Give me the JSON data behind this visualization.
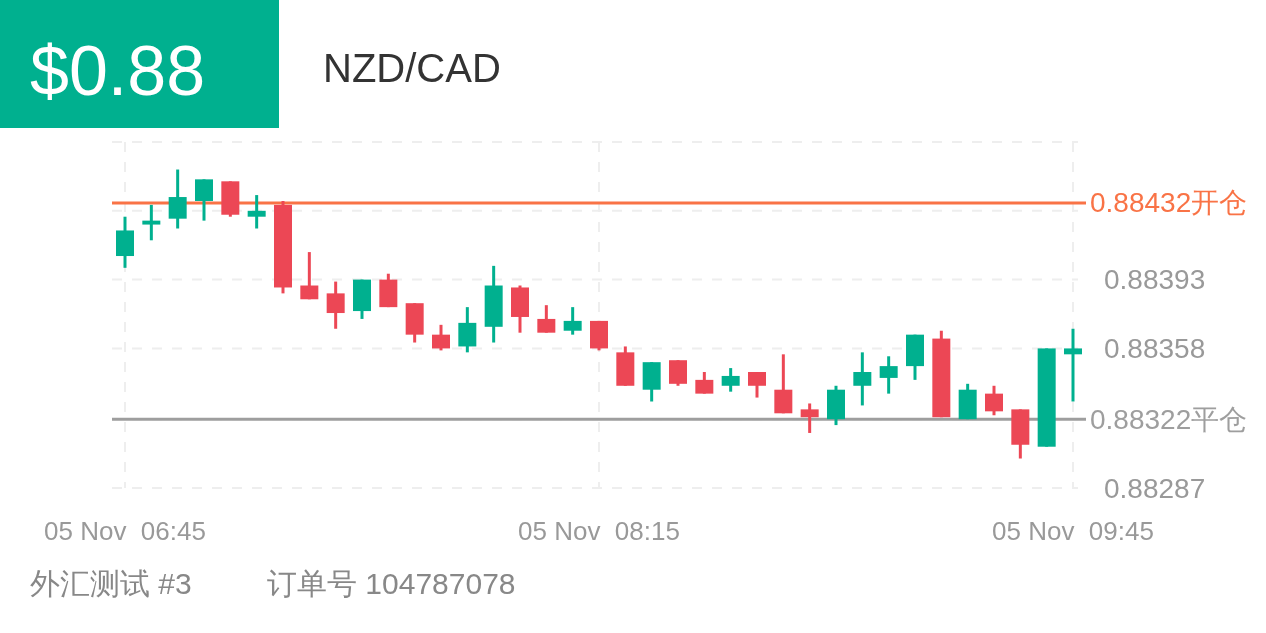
{
  "chart_data": {
    "type": "candlestick",
    "title": "NZD/CAD",
    "subtitle": "$0.88",
    "categories": [
      "05 Nov  06:45",
      null,
      null,
      null,
      null,
      null,
      null,
      null,
      null,
      null,
      null,
      null,
      null,
      null,
      null,
      null,
      null,
      null,
      "05 Nov  08:15",
      null,
      null,
      null,
      null,
      null,
      null,
      null,
      null,
      null,
      null,
      null,
      null,
      null,
      null,
      null,
      null,
      null,
      "05 Nov  09:45"
    ],
    "ohlc": [
      [
        0.88405,
        0.88425,
        0.88399,
        0.88418
      ],
      [
        0.88421,
        0.88431,
        0.88413,
        0.88423
      ],
      [
        0.88424,
        0.88449,
        0.88419,
        0.88435
      ],
      [
        0.88433,
        0.88444,
        0.88423,
        0.88444
      ],
      [
        0.88443,
        0.88443,
        0.88425,
        0.88426
      ],
      [
        0.88425,
        0.88436,
        0.88419,
        0.88428
      ],
      [
        0.88431,
        0.88433,
        0.88386,
        0.88389
      ],
      [
        0.8839,
        0.88407,
        0.88383,
        0.88383
      ],
      [
        0.88386,
        0.88392,
        0.88368,
        0.88376
      ],
      [
        0.88377,
        0.88393,
        0.88373,
        0.88393
      ],
      [
        0.88393,
        0.88396,
        0.88379,
        0.88379
      ],
      [
        0.88381,
        0.88381,
        0.88361,
        0.88365
      ],
      [
        0.88365,
        0.8837,
        0.88357,
        0.88358
      ],
      [
        0.88359,
        0.88379,
        0.88356,
        0.88371
      ],
      [
        0.88369,
        0.884,
        0.88361,
        0.8839
      ],
      [
        0.88389,
        0.8839,
        0.88366,
        0.88374
      ],
      [
        0.88373,
        0.8838,
        0.88366,
        0.88366
      ],
      [
        0.88367,
        0.88379,
        0.88365,
        0.88372
      ],
      [
        0.88372,
        0.88372,
        0.88357,
        0.88358
      ],
      [
        0.88356,
        0.88359,
        0.88339,
        0.88339
      ],
      [
        0.88337,
        0.88351,
        0.88331,
        0.88351
      ],
      [
        0.88352,
        0.88352,
        0.88339,
        0.8834
      ],
      [
        0.88342,
        0.88346,
        0.88335,
        0.88335
      ],
      [
        0.88339,
        0.88348,
        0.88336,
        0.88344
      ],
      [
        0.88346,
        0.88346,
        0.88333,
        0.88339
      ],
      [
        0.88337,
        0.88355,
        0.88325,
        0.88325
      ],
      [
        0.88327,
        0.8833,
        0.88315,
        0.88323
      ],
      [
        0.88322,
        0.88339,
        0.88319,
        0.88337
      ],
      [
        0.88339,
        0.88356,
        0.88329,
        0.88346
      ],
      [
        0.88343,
        0.88354,
        0.88335,
        0.88349
      ],
      [
        0.88349,
        0.88365,
        0.88342,
        0.88365
      ],
      [
        0.88363,
        0.88367,
        0.88323,
        0.88323
      ],
      [
        0.88322,
        0.8834,
        0.88322,
        0.88337
      ],
      [
        0.88335,
        0.88339,
        0.88324,
        0.88326
      ],
      [
        0.88327,
        0.88327,
        0.88302,
        0.88309
      ],
      [
        0.88308,
        0.88358,
        0.88308,
        0.88358
      ],
      [
        0.88355,
        0.88368,
        0.88331,
        0.88358
      ]
    ],
    "colors": [
      "#00b08f",
      "#00b08f",
      "#00b08f",
      "#00b08f",
      "#ec4755",
      "#00b08f",
      "#ec4755",
      "#ec4755",
      "#ec4755",
      "#00b08f",
      "#ec4755",
      "#ec4755",
      "#ec4755",
      "#00b08f",
      "#00b08f",
      "#ec4755",
      "#ec4755",
      "#00b08f",
      "#ec4755",
      "#ec4755",
      "#00b08f",
      "#ec4755",
      "#ec4755",
      "#00b08f",
      "#ec4755",
      "#ec4755",
      "#ec4755",
      "#00b08f",
      "#00b08f",
      "#00b08f",
      "#00b08f",
      "#ec4755",
      "#00b08f",
      "#ec4755",
      "#ec4755",
      "#00b08f",
      "#00b08f"
    ],
    "ylim": [
      0.88287,
      0.88463
    ],
    "yticks": [
      0.88287,
      {
        "value": 0.88322,
        "label": null
      },
      0.88358,
      0.88393,
      {
        "value": 0.88428,
        "label": null
      }
    ],
    "ref_lines": [
      {
        "axis": "y",
        "value": 0.88432,
        "label": "0.88432开仓",
        "color": "#f97346"
      },
      {
        "axis": "y",
        "value": 0.88322,
        "label": "0.88322平仓",
        "color": "#9e9e9e"
      }
    ],
    "grid": true,
    "annotations": [
      "外汇测试 #3",
      "订单号 104787078"
    ]
  }
}
